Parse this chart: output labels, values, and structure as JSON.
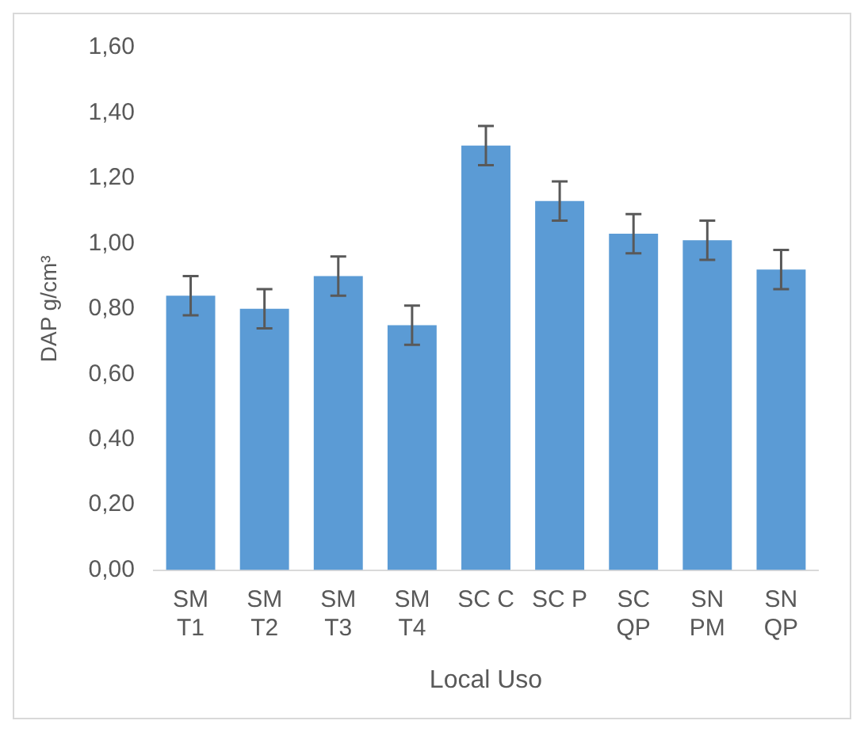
{
  "chart_data": {
    "type": "bar",
    "xlabel": "Local Uso",
    "ylabel": "DAP g/cm³",
    "categories": [
      "SM T1",
      "SM T2",
      "SM T3",
      "SM T4",
      "SC C",
      "SC P",
      "SC QP",
      "SN PM",
      "SN QP"
    ],
    "values": [
      0.84,
      0.8,
      0.9,
      0.75,
      1.3,
      1.13,
      1.03,
      1.01,
      0.92
    ],
    "errors": [
      0.06,
      0.06,
      0.06,
      0.06,
      0.06,
      0.06,
      0.06,
      0.06,
      0.06
    ],
    "color": "#5b9bd5",
    "ylim": [
      0,
      1.6
    ],
    "yticks": [
      {
        "value": 0,
        "label": "0,00"
      },
      {
        "value": 0.2,
        "label": "0,20"
      },
      {
        "value": 0.4,
        "label": "0,40"
      },
      {
        "value": 0.6,
        "label": "0,60"
      },
      {
        "value": 0.8,
        "label": "0,80"
      },
      {
        "value": 1.0,
        "label": "1,00"
      },
      {
        "value": 1.2,
        "label": "1,20"
      },
      {
        "value": 1.4,
        "label": "1,40"
      },
      {
        "value": 1.6,
        "label": "1,60"
      }
    ],
    "grid": false,
    "legend": false
  }
}
